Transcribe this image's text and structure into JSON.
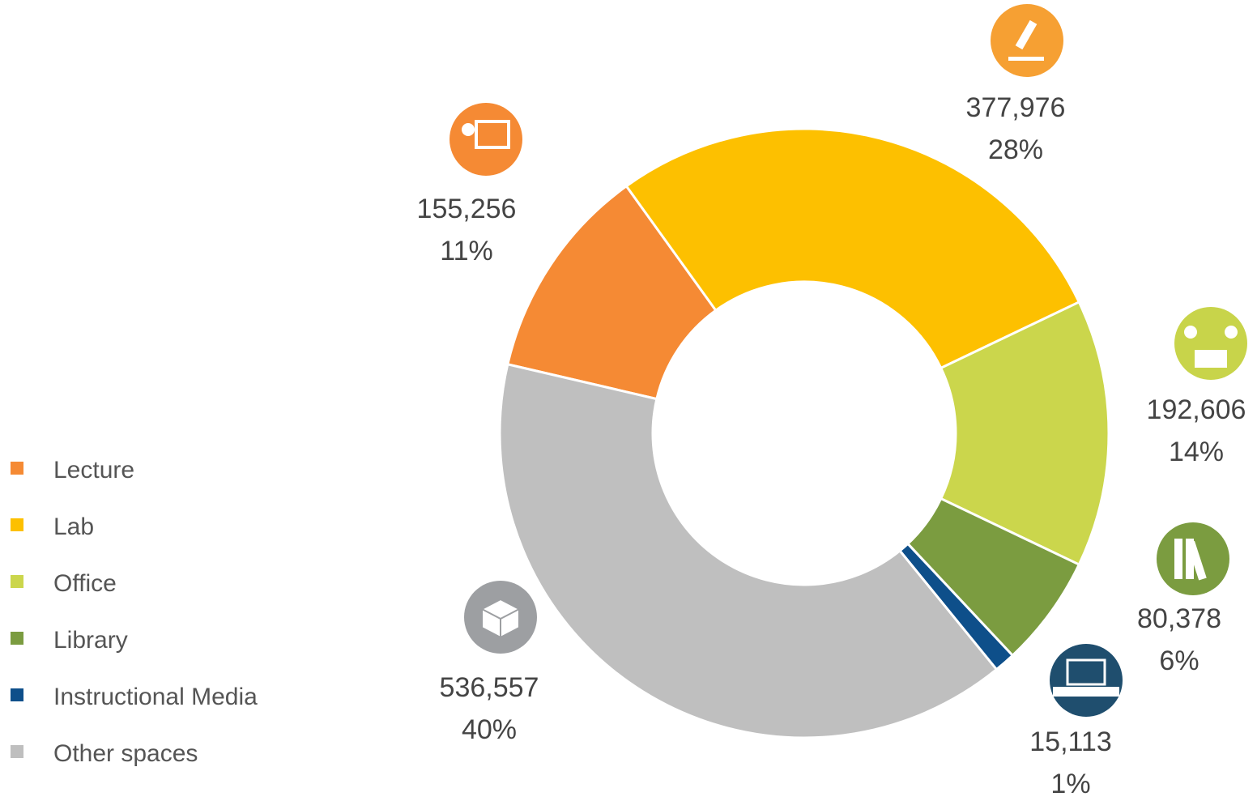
{
  "chart_data": {
    "type": "donut",
    "categories": [
      "Lecture",
      "Lab",
      "Office",
      "Library",
      "Instructional Media",
      "Other spaces"
    ],
    "values": [
      155256,
      377976,
      192606,
      80378,
      15113,
      536557
    ],
    "value_labels": [
      "155,256",
      "377,976",
      "192,606",
      "80,378",
      "15,113",
      "536,557"
    ],
    "percent_labels": [
      "11%",
      "28%",
      "14%",
      "6%",
      "1%",
      "40%"
    ],
    "colors": [
      "#f58a34",
      "#fdc000",
      "#cbd64c",
      "#7b9c40",
      "#0e4f8a",
      "#bfbfbf"
    ],
    "legend": "left"
  }
}
